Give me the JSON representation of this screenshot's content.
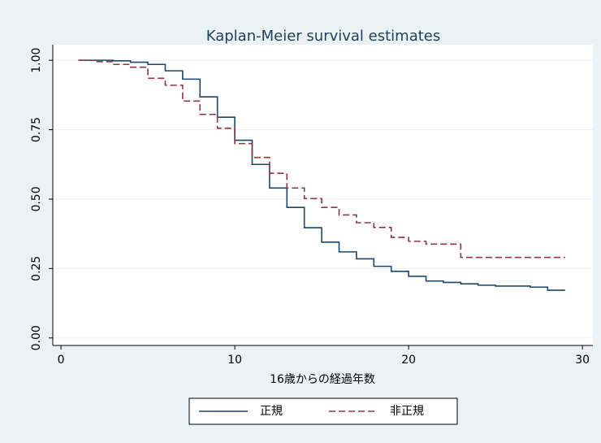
{
  "chart_data": {
    "type": "line",
    "step": true,
    "title": "Kaplan-Meier survival estimates",
    "x_label": "16歳からの経過年数",
    "x": [
      1,
      2,
      3,
      4,
      5,
      6,
      7,
      8,
      9,
      10,
      11,
      12,
      13,
      14,
      15,
      16,
      17,
      18,
      19,
      20,
      21,
      22,
      23,
      24,
      25,
      26,
      27,
      28,
      29
    ],
    "series": [
      {
        "name": "正規",
        "color": "#1a476f",
        "dash": false,
        "values": [
          1.0,
          1.0,
          0.998,
          0.993,
          0.985,
          0.962,
          0.932,
          0.868,
          0.795,
          0.712,
          0.625,
          0.54,
          0.47,
          0.397,
          0.345,
          0.31,
          0.285,
          0.258,
          0.24,
          0.222,
          0.205,
          0.2,
          0.195,
          0.19,
          0.187,
          0.187,
          0.183,
          0.172,
          0.172
        ]
      },
      {
        "name": "非正規",
        "color": "#90353b",
        "dash": true,
        "values": [
          1.0,
          0.995,
          0.985,
          0.975,
          0.935,
          0.91,
          0.853,
          0.805,
          0.755,
          0.7,
          0.65,
          0.593,
          0.54,
          0.502,
          0.47,
          0.443,
          0.415,
          0.398,
          0.362,
          0.348,
          0.338,
          0.338,
          0.29,
          0.29,
          0.29,
          0.29,
          0.29,
          0.29,
          0.29
        ]
      }
    ],
    "xlim": [
      -0.47,
      30.6
    ],
    "xticks": [
      0,
      10,
      20,
      30
    ],
    "ylim": [
      -0.027,
      1.056
    ],
    "yticks": [
      {
        "value": 0,
        "label": "0.00"
      },
      {
        "value": 0.25,
        "label": "0.25"
      },
      {
        "value": 0.5,
        "label": "0.50"
      },
      {
        "value": 0.75,
        "label": "0.75"
      },
      {
        "value": 1,
        "label": "1.00"
      }
    ],
    "grid": true,
    "legend": "bottom"
  }
}
